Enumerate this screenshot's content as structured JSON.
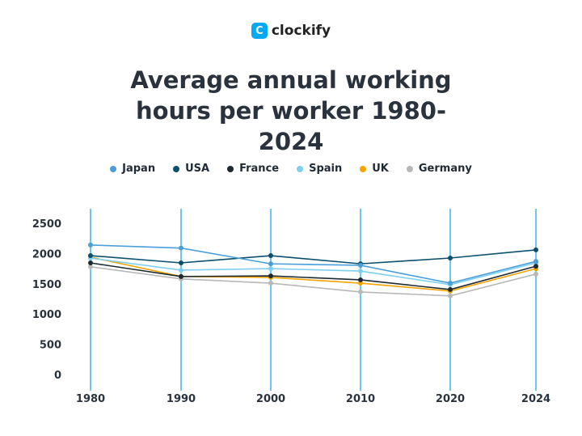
{
  "logo": {
    "mark": "C",
    "text": "clockify"
  },
  "chart_data": {
    "type": "line",
    "title": "Average annual working hours per worker 1980-2024",
    "categories": [
      "1980",
      "1990",
      "2000",
      "2010",
      "2020",
      "2024"
    ],
    "yticks": [
      "0",
      "500",
      "1000",
      "1500",
      "2000",
      "2500"
    ],
    "ylim": [
      0,
      2500
    ],
    "grid": "vertical",
    "grid_color": "#3db4e8",
    "legend": "top",
    "series": [
      {
        "name": "Japan",
        "color": "#4a9fd8",
        "values": [
          2140,
          2090,
          1830,
          1805,
          1510,
          1870
        ]
      },
      {
        "name": "USA",
        "color": "#0b4f6c",
        "values": [
          1965,
          1845,
          1965,
          1830,
          1925,
          2060
        ]
      },
      {
        "name": "France",
        "color": "#1e2a32",
        "values": [
          1845,
          1620,
          1630,
          1565,
          1405,
          1790
        ]
      },
      {
        "name": "Spain",
        "color": "#7fd0f0",
        "values": [
          1925,
          1725,
          1750,
          1710,
          1485,
          1845
        ]
      },
      {
        "name": "UK",
        "color": "#f5a300",
        "values": [
          1940,
          1620,
          1605,
          1510,
          1380,
          1750
        ]
      },
      {
        "name": "Germany",
        "color": "#b8b8b8",
        "values": [
          1780,
          1580,
          1510,
          1365,
          1300,
          1660
        ]
      }
    ]
  }
}
